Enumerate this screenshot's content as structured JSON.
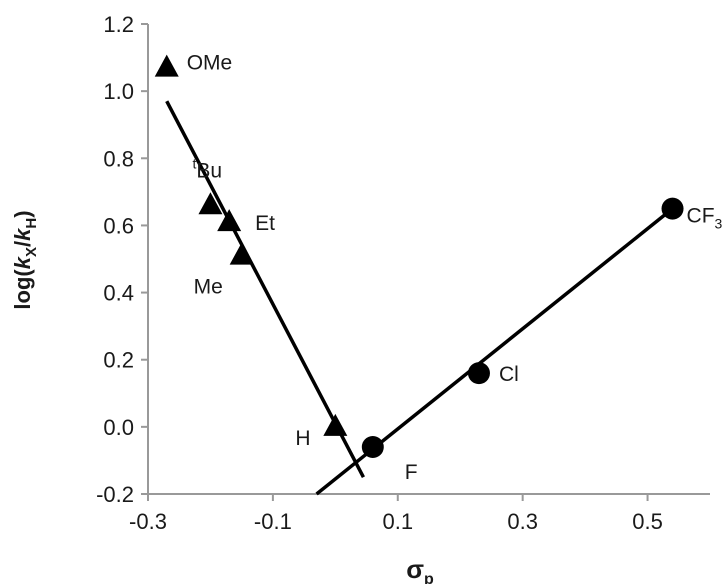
{
  "chart_data": {
    "type": "scatter",
    "title": "",
    "xlabel": "σ",
    "xlabel_sub": "p",
    "ylabel_parts": {
      "prefix": "log(",
      "k1": "k",
      "sub1": "X",
      "slash": "/",
      "k2": "k",
      "sub2": "H",
      "suffix": ")"
    },
    "xlim": [
      -0.3,
      0.6
    ],
    "ylim": [
      -0.2,
      1.2
    ],
    "x_ticks": [
      -0.3,
      -0.1,
      0.1,
      0.3,
      0.5
    ],
    "x_tick_labels": [
      "-0.3",
      "-0.1",
      "0.1",
      "0.3",
      "0.5"
    ],
    "y_ticks": [
      -0.2,
      0.0,
      0.2,
      0.4,
      0.6,
      0.8,
      1.0,
      1.2
    ],
    "y_tick_labels": [
      "-0.2",
      "0.0",
      "0.2",
      "0.4",
      "0.6",
      "0.8",
      "1.0",
      "1.2"
    ],
    "grid": false,
    "legend": "none",
    "series": [
      {
        "marker": "triangle",
        "points": [
          {
            "label": "OMe",
            "x": -0.27,
            "y": 1.07
          },
          {
            "label_sup": "t",
            "label": "Bu",
            "x": -0.2,
            "y": 0.66
          },
          {
            "label": "Et",
            "x": -0.17,
            "y": 0.61
          },
          {
            "label": "Me",
            "x": -0.15,
            "y": 0.51
          },
          {
            "label": "H",
            "x": 0.0,
            "y": 0.0
          }
        ],
        "fit_line": {
          "x": [
            -0.27,
            0.045
          ],
          "y": [
            0.97,
            -0.15
          ]
        }
      },
      {
        "marker": "circle",
        "points": [
          {
            "label": "F",
            "x": 0.06,
            "y": -0.06
          },
          {
            "label": "Cl",
            "x": 0.23,
            "y": 0.16
          },
          {
            "label": "CF",
            "label_sub": "3",
            "x": 0.54,
            "y": 0.65
          }
        ],
        "fit_line": {
          "x": [
            -0.03,
            0.54
          ],
          "y": [
            -0.2,
            0.65
          ]
        }
      }
    ],
    "colors": {
      "marks": "#000000",
      "axes": "#999999",
      "text": "#1a1a1a"
    }
  }
}
